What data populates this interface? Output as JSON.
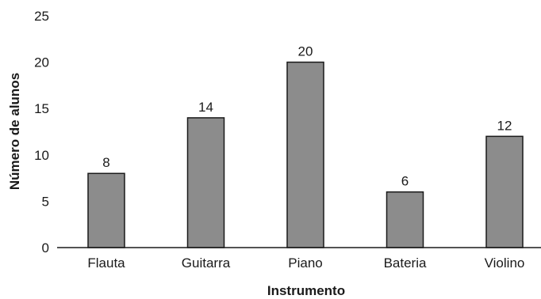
{
  "chart_data": {
    "type": "bar",
    "title": "",
    "xlabel": "Instrumento",
    "ylabel": "Número de alunos",
    "ylim": [
      0,
      25
    ],
    "yticks": [
      0,
      5,
      10,
      15,
      20,
      25
    ],
    "categories": [
      "Flauta",
      "Guitarra",
      "Piano",
      "Bateria",
      "Violino"
    ],
    "values": [
      8,
      14,
      20,
      6,
      12
    ],
    "data_labels": [
      "8",
      "14",
      "20",
      "6",
      "12"
    ],
    "grid": false,
    "legend": "none",
    "bar_color": "#8c8c8c",
    "bar_edge_color": "#1a1a1a"
  }
}
